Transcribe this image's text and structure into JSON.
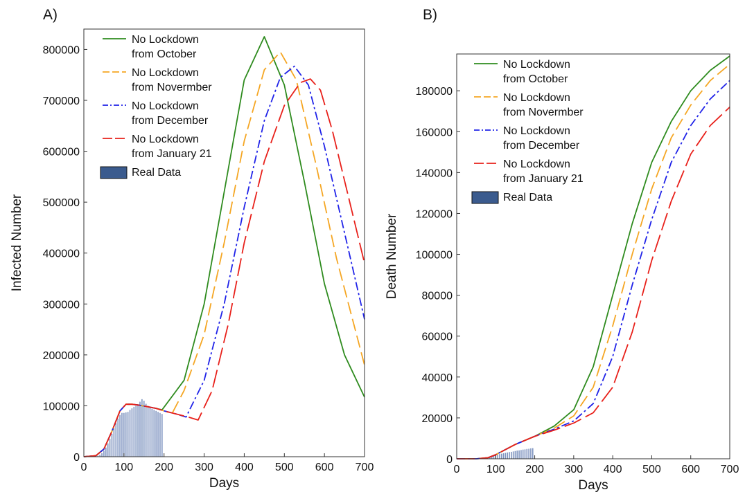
{
  "chart_data": [
    {
      "panel_label": "A)",
      "type": "line",
      "xlabel": "Days",
      "ylabel": "Infected Number",
      "xlim": [
        0,
        700
      ],
      "ylim": [
        0,
        840000
      ],
      "x_ticks": [
        0,
        100,
        200,
        300,
        400,
        500,
        600,
        700
      ],
      "y_ticks": [
        0,
        100000,
        200000,
        300000,
        400000,
        500000,
        600000,
        700000,
        800000
      ],
      "grid": false,
      "legend_position": "top-left",
      "legend": [
        {
          "line1": "No Lockdown",
          "line2": "from October",
          "color": "#2e8b1e",
          "dash": "solid"
        },
        {
          "line1": "No Lockdown",
          "line2": "from Novermber",
          "color": "#f5a623",
          "dash": "dash"
        },
        {
          "line1": "No Lockdown",
          "line2": "from December",
          "color": "#1f22e8",
          "dash": "dashdot"
        },
        {
          "line1": "No Lockdown",
          "line2": "from January 21",
          "color": "#e8201a",
          "dash": "longdash"
        },
        {
          "line1": "Real Data",
          "line2": "",
          "color": "#3b5b8e",
          "dash": "bar"
        }
      ],
      "series": [
        {
          "name": "No Lockdown from October",
          "color": "#2e8b1e",
          "dash": "solid",
          "x": [
            0,
            30,
            50,
            70,
            90,
            105,
            120,
            140,
            160,
            180,
            195,
            250,
            300,
            350,
            400,
            450,
            500,
            550,
            600,
            650,
            700
          ],
          "y": [
            0,
            2000,
            15000,
            50000,
            90000,
            103000,
            103000,
            101000,
            98000,
            95000,
            92000,
            150000,
            300000,
            520000,
            740000,
            825000,
            730000,
            540000,
            340000,
            200000,
            117000
          ]
        },
        {
          "name": "No Lockdown from Novermber",
          "color": "#f5a623",
          "dash": "dash",
          "x": [
            0,
            30,
            50,
            70,
            90,
            105,
            120,
            140,
            160,
            180,
            200,
            220,
            250,
            300,
            350,
            400,
            450,
            490,
            530,
            580,
            630,
            700
          ],
          "y": [
            0,
            2000,
            15000,
            50000,
            90000,
            103000,
            103000,
            101000,
            98000,
            95000,
            90000,
            85000,
            130000,
            240000,
            420000,
            620000,
            760000,
            795000,
            740000,
            570000,
            390000,
            180000
          ]
        },
        {
          "name": "No Lockdown from December",
          "color": "#1f22e8",
          "dash": "dashdot",
          "x": [
            0,
            30,
            50,
            70,
            90,
            105,
            120,
            140,
            160,
            180,
            200,
            230,
            255,
            300,
            350,
            400,
            450,
            490,
            525,
            560,
            600,
            650,
            700
          ],
          "y": [
            0,
            2000,
            15000,
            50000,
            90000,
            103000,
            103000,
            101000,
            98000,
            95000,
            90000,
            84000,
            78000,
            150000,
            300000,
            490000,
            660000,
            745000,
            767000,
            730000,
            610000,
            440000,
            270000
          ]
        },
        {
          "name": "No Lockdown from January 21",
          "color": "#e8201a",
          "dash": "longdash",
          "x": [
            0,
            30,
            50,
            70,
            90,
            105,
            120,
            140,
            160,
            180,
            200,
            230,
            260,
            285,
            320,
            360,
            400,
            450,
            500,
            540,
            565,
            590,
            620,
            660,
            700
          ],
          "y": [
            0,
            2000,
            15000,
            50000,
            90000,
            103000,
            103000,
            101000,
            98000,
            95000,
            90000,
            84000,
            78000,
            72000,
            130000,
            260000,
            420000,
            580000,
            690000,
            735000,
            742000,
            720000,
            640000,
            510000,
            380000
          ]
        }
      ],
      "real_data": {
        "name": "Real Data",
        "x": [
          30,
          35,
          40,
          45,
          50,
          55,
          60,
          65,
          70,
          75,
          80,
          85,
          90,
          95,
          100,
          105,
          110,
          115,
          120,
          125,
          130,
          135,
          140,
          145,
          150,
          155,
          160,
          165,
          170,
          175,
          180,
          185,
          190,
          195
        ],
        "y": [
          1000,
          2000,
          4000,
          7000,
          12000,
          18000,
          26000,
          35000,
          45000,
          56000,
          66000,
          75000,
          82000,
          86000,
          86000,
          87000,
          88000,
          92000,
          95000,
          98000,
          100000,
          103000,
          108000,
          113000,
          110000,
          104000,
          100000,
          97000,
          94000,
          92000,
          90000,
          88000,
          86000,
          84000
        ]
      }
    },
    {
      "panel_label": "B)",
      "type": "line",
      "xlabel": "Days",
      "ylabel": "Death Number",
      "xlim": [
        0,
        700
      ],
      "ylim": [
        0,
        198000
      ],
      "x_ticks": [
        0,
        100,
        200,
        300,
        400,
        500,
        600,
        700
      ],
      "y_ticks": [
        0,
        20000,
        40000,
        60000,
        80000,
        100000,
        120000,
        140000,
        160000,
        180000
      ],
      "grid": false,
      "legend_position": "top-left",
      "legend": [
        {
          "line1": "No Lockdown",
          "line2": "from October",
          "color": "#2e8b1e",
          "dash": "solid"
        },
        {
          "line1": "No Lockdown",
          "line2": "from Novermber",
          "color": "#f5a623",
          "dash": "dash"
        },
        {
          "line1": "No Lockdown",
          "line2": "from December",
          "color": "#1f22e8",
          "dash": "dashdot"
        },
        {
          "line1": "No Lockdown",
          "line2": "from January 21",
          "color": "#e8201a",
          "dash": "longdash"
        },
        {
          "line1": "Real Data",
          "line2": "",
          "color": "#3b5b8e",
          "dash": "bar"
        }
      ],
      "series": [
        {
          "name": "No Lockdown from October",
          "color": "#2e8b1e",
          "dash": "solid",
          "x": [
            0,
            50,
            80,
            100,
            150,
            200,
            250,
            300,
            350,
            400,
            450,
            500,
            550,
            600,
            650,
            700
          ],
          "y": [
            0,
            0,
            500,
            2000,
            7000,
            11000,
            16000,
            24000,
            45000,
            80000,
            115000,
            145000,
            165000,
            180000,
            190000,
            197000
          ]
        },
        {
          "name": "No Lockdown from Novermber",
          "color": "#f5a623",
          "dash": "dash",
          "x": [
            0,
            50,
            80,
            100,
            150,
            200,
            250,
            300,
            350,
            400,
            450,
            500,
            550,
            600,
            650,
            700
          ],
          "y": [
            0,
            0,
            500,
            2000,
            7000,
            11000,
            15000,
            21000,
            35000,
            65000,
            100000,
            132000,
            157000,
            173000,
            185000,
            193000
          ]
        },
        {
          "name": "No Lockdown from December",
          "color": "#1f22e8",
          "dash": "dashdot",
          "x": [
            0,
            50,
            80,
            100,
            150,
            200,
            250,
            300,
            350,
            400,
            450,
            500,
            550,
            600,
            650,
            700
          ],
          "y": [
            0,
            0,
            500,
            2000,
            7000,
            11000,
            14500,
            18500,
            27000,
            50000,
            85000,
            117000,
            145000,
            163000,
            176000,
            185000
          ]
        },
        {
          "name": "No Lockdown from January 21",
          "color": "#e8201a",
          "dash": "longdash",
          "x": [
            0,
            50,
            80,
            100,
            150,
            200,
            250,
            300,
            350,
            400,
            450,
            500,
            550,
            600,
            650,
            700
          ],
          "y": [
            0,
            0,
            500,
            2000,
            7000,
            11000,
            14000,
            17500,
            22500,
            35000,
            62000,
            97000,
            126000,
            149000,
            163000,
            172000
          ]
        }
      ],
      "real_data": {
        "name": "Real Data",
        "x": [
          55,
          60,
          65,
          70,
          75,
          80,
          85,
          90,
          95,
          100,
          105,
          110,
          115,
          120,
          125,
          130,
          135,
          140,
          145,
          150,
          155,
          160,
          165,
          170,
          175,
          180,
          185,
          190,
          195
        ],
        "y": [
          200,
          300,
          400,
          500,
          600,
          800,
          1000,
          1200,
          1500,
          1800,
          2100,
          2300,
          2500,
          2700,
          2900,
          3100,
          3300,
          3400,
          3600,
          3800,
          4000,
          4100,
          4300,
          4500,
          4600,
          4800,
          4900,
          5100,
          5200
        ]
      }
    }
  ]
}
